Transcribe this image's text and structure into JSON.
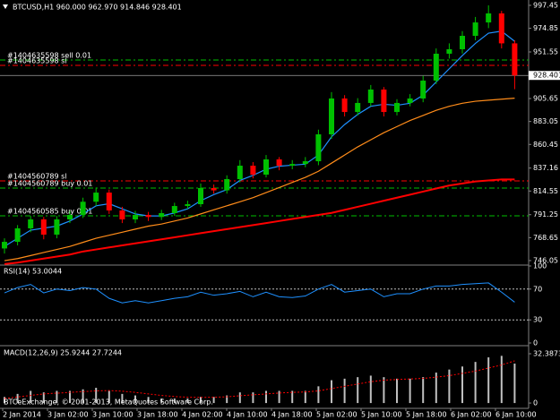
{
  "header": "BTCUSD,H1  960.000 962.970 914.846 928.401",
  "copyright": "BTCeExchange, © 2001-2013, MetaQuotes Software Corp.",
  "time_axis": [
    "2 Jan 2014",
    "3 Jan 02:00",
    "3 Jan 10:00",
    "3 Jan 18:00",
    "4 Jan 02:00",
    "4 Jan 10:00",
    "4 Jan 18:00",
    "5 Jan 02:00",
    "5 Jan 10:00",
    "5 Jan 18:00",
    "6 Jan 02:00",
    "6 Jan 10:00"
  ],
  "chart_data": [
    {
      "type": "candlestick",
      "last_price": 928.401,
      "ylim": [
        742.5,
        1002.7
      ],
      "yticks": [
        997.45,
        974.85,
        951.55,
        905.65,
        883.05,
        860.45,
        837.16,
        814.55,
        791.25,
        768.65,
        746.05
      ],
      "up_color": "#00c000",
      "down_color": "#ff0000",
      "open": [
        758,
        764.5,
        777.8,
        786.6,
        771.6,
        786.6,
        791,
        804,
        813,
        795.4,
        786.6,
        791,
        789,
        792.8,
        799.8,
        801.6,
        817.5,
        815.2,
        826.3,
        839.5,
        830.7,
        845.7,
        839.5,
        841.2,
        843.9,
        870.4,
        905.7,
        892.4,
        901.3,
        914.5,
        892.4,
        901.3,
        905.7,
        923.3,
        949.8,
        954.2,
        967.4,
        980.6,
        989.5,
        960
      ],
      "high": [
        768,
        781,
        790,
        789,
        790,
        795,
        808,
        818,
        816,
        799,
        795,
        794,
        796,
        803,
        805,
        822,
        821,
        830,
        845,
        843,
        850,
        848,
        845,
        848,
        875,
        912,
        909,
        906,
        919,
        917,
        905,
        910,
        928,
        955,
        960,
        972,
        986,
        997.45,
        992,
        962.97
      ],
      "low": [
        753,
        761,
        774,
        767,
        768,
        783,
        788,
        800,
        792,
        783,
        783,
        785,
        786,
        790,
        797,
        799,
        812,
        812,
        823,
        827,
        828,
        835,
        836,
        838,
        840,
        866,
        888,
        889,
        898,
        888,
        889,
        898,
        902,
        920,
        945,
        950,
        963,
        975,
        955,
        914.846
      ],
      "close": [
        764.5,
        777.8,
        786.6,
        771.6,
        786.6,
        791,
        804,
        813,
        795.4,
        786.6,
        791,
        789,
        792.8,
        799.8,
        801.6,
        817.5,
        815.2,
        826.3,
        839.5,
        830.7,
        845.7,
        839.5,
        841.2,
        843.9,
        870.4,
        905.7,
        892.4,
        901.3,
        914.5,
        892.4,
        901.3,
        905.7,
        923.3,
        949.8,
        954.2,
        967.4,
        980.6,
        989.5,
        960,
        928.401
      ],
      "series": [
        {
          "color": "#1e90ff",
          "values": [
            760,
            768,
            776,
            778,
            780,
            785,
            792,
            800,
            802,
            797,
            792,
            790,
            790,
            793,
            797,
            805,
            811,
            816,
            825,
            830,
            836,
            839,
            840,
            841,
            850,
            868,
            880,
            890,
            898,
            900,
            899,
            901,
            909,
            922,
            935,
            948,
            960,
            970,
            972,
            962
          ]
        },
        {
          "color": "#ff8c1a",
          "values": [
            746,
            748,
            751,
            754,
            757,
            760,
            764,
            768,
            771,
            774,
            777,
            780,
            782,
            785,
            788,
            792,
            796,
            800,
            804,
            808,
            813,
            818,
            823,
            828,
            834,
            842,
            850,
            858,
            865,
            872,
            878,
            884,
            889,
            894,
            898,
            901,
            903,
            904,
            905,
            906
          ]
        },
        {
          "color": "#ff0000",
          "values": [
            742.6,
            744,
            746,
            748,
            750,
            752,
            755,
            757,
            759,
            761,
            763,
            765,
            767,
            769,
            771,
            773,
            775,
            777,
            779,
            781,
            783,
            785,
            787,
            789,
            791,
            793,
            796,
            799,
            802,
            805,
            808,
            811,
            814,
            817,
            820,
            822,
            824,
            825,
            826,
            826
          ]
        }
      ],
      "orders": [
        {
          "label": "#1404635598 sell 0.01",
          "price": 943.6,
          "color": "#00c000"
        },
        {
          "label": "#1404635598 sl",
          "price": 938.3,
          "color": "#ff0000"
        },
        {
          "label": "#1404560789 sl",
          "price": 824.5,
          "color": "#ff0000"
        },
        {
          "label": "#1404560789 buy 0.01",
          "price": 817.5,
          "color": "#00c000"
        },
        {
          "label": "#1404560585 buy 0.01",
          "price": 790.1,
          "color": "#00c000"
        }
      ]
    },
    {
      "type": "line",
      "title": "RSI(14) 53.0044",
      "ylim": [
        0,
        100
      ],
      "yticks": [
        100,
        70,
        30,
        0
      ],
      "levels": [
        70,
        30
      ],
      "color": "#1e90ff",
      "values": [
        65,
        72,
        76,
        65,
        70,
        68,
        72,
        70,
        58,
        52,
        55,
        52,
        55,
        58,
        60,
        66,
        62,
        64,
        67,
        60,
        66,
        60,
        59,
        61,
        70,
        76,
        66,
        68,
        70,
        60,
        64,
        64,
        70,
        74,
        74,
        76,
        77,
        78,
        66,
        53
      ]
    },
    {
      "type": "bar",
      "title": "MACD(12,26,9) 25.9244 27.7244",
      "ylim": [
        -2.9,
        36.5
      ],
      "yticks": [
        32.3873,
        0
      ],
      "color": "#c0c0c0",
      "signal_color": "#ff0000",
      "values": [
        4,
        6,
        8,
        7,
        8,
        8,
        9,
        10,
        8,
        6,
        5,
        4,
        3,
        3,
        3,
        4,
        4,
        5,
        7,
        7,
        8,
        8,
        8,
        8,
        11,
        15,
        16,
        17,
        18,
        17,
        16,
        16,
        17,
        20,
        22,
        24,
        27,
        30,
        31,
        25.9244
      ],
      "signal": [
        3,
        4,
        5,
        6,
        6.5,
        7,
        7.5,
        8,
        8.2,
        7.8,
        7,
        6,
        5,
        4.3,
        3.8,
        3.7,
        3.8,
        4.1,
        4.8,
        5.4,
        6,
        6.6,
        7,
        7.3,
        8,
        9.5,
        11,
        12.5,
        14,
        15,
        15.5,
        15.8,
        16.2,
        17,
        18,
        19.5,
        21,
        23,
        25,
        27.7244
      ]
    }
  ]
}
